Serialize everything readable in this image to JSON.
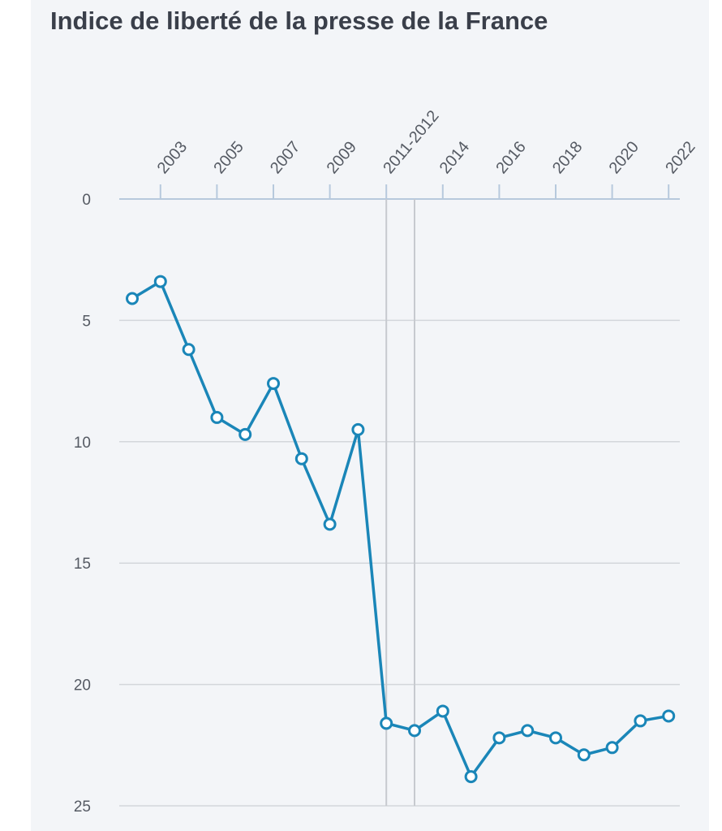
{
  "chart_data": {
    "type": "line",
    "title": "Indice de liberté de la presse de la France",
    "xlabel": "",
    "ylabel": "",
    "x_tick_labels": [
      "2003",
      "2005",
      "2007",
      "2009",
      "2011-2012",
      "2014",
      "2016",
      "2018",
      "2020",
      "2022"
    ],
    "x": [
      "2002",
      "2003",
      "2004",
      "2005",
      "2006",
      "2007",
      "2008",
      "2009",
      "2010",
      "2011-2012",
      "2013",
      "2014",
      "2015",
      "2016",
      "2017",
      "2018",
      "2019",
      "2020",
      "2021",
      "2022"
    ],
    "y_ticks": [
      0,
      5,
      10,
      15,
      20,
      25
    ],
    "ylim": [
      0,
      25
    ],
    "y_inverted": true,
    "grid": true,
    "series": [
      {
        "color": "#1a86b8",
        "values": [
          4.1,
          3.4,
          6.2,
          9.0,
          9.7,
          7.6,
          10.7,
          13.4,
          9.5,
          21.6,
          21.9,
          21.1,
          23.8,
          22.2,
          21.9,
          22.2,
          22.9,
          22.6,
          21.5,
          21.3
        ]
      }
    ],
    "reference_lines_x": [
      "2011-2012",
      "2013"
    ]
  }
}
